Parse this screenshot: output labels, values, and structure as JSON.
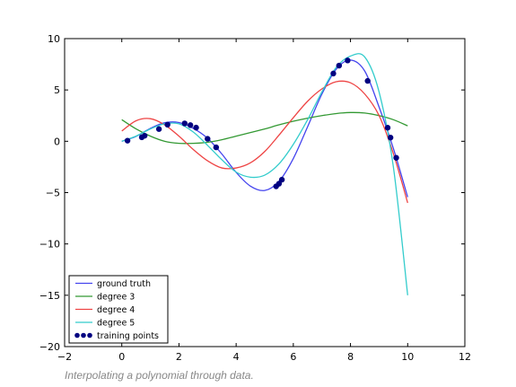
{
  "caption": "Interpolating a polynomial through data.",
  "chart_data": {
    "type": "line",
    "title": "",
    "xlabel": "",
    "ylabel": "",
    "xlim": [
      -2,
      12
    ],
    "ylim": [
      -20,
      10
    ],
    "xticks": [
      -2,
      0,
      2,
      4,
      6,
      8,
      10,
      12
    ],
    "yticks": [
      -20,
      -15,
      -10,
      -5,
      0,
      5,
      10
    ],
    "grid": false,
    "legend_position": "lower-left",
    "x": [
      0.0,
      0.5,
      1.0,
      1.5,
      2.0,
      2.5,
      3.0,
      3.5,
      4.0,
      4.5,
      5.0,
      5.5,
      6.0,
      6.5,
      7.0,
      7.5,
      8.0,
      8.5,
      9.0,
      9.5,
      10.0
    ],
    "series": [
      {
        "name": "ground truth",
        "color": "#4444ee",
        "values": [
          0.0,
          0.48,
          1.26,
          1.81,
          1.82,
          1.26,
          0.29,
          -1.24,
          -3.03,
          -4.37,
          -4.79,
          -3.9,
          -1.68,
          1.42,
          4.6,
          7.02,
          7.91,
          6.83,
          3.33,
          -0.7,
          -5.44
        ]
      },
      {
        "name": "degree 3",
        "color": "#339933",
        "values": [
          2.1,
          1.2,
          0.5,
          0.0,
          -0.2,
          -0.2,
          -0.1,
          0.15,
          0.5,
          0.85,
          1.2,
          1.6,
          1.95,
          2.25,
          2.5,
          2.7,
          2.8,
          2.75,
          2.5,
          2.1,
          1.5
        ]
      },
      {
        "name": "degree 4",
        "color": "#ee4444",
        "values": [
          1.0,
          2.0,
          2.2,
          1.6,
          0.5,
          -0.8,
          -1.9,
          -2.6,
          -2.6,
          -2.1,
          -1.0,
          0.6,
          2.3,
          3.9,
          5.1,
          5.8,
          5.7,
          4.6,
          2.5,
          -1.2,
          -6.0
        ]
      },
      {
        "name": "degree 5",
        "color": "#33cccc",
        "values": [
          0.0,
          0.5,
          1.2,
          1.7,
          1.7,
          0.9,
          -0.4,
          -1.8,
          -3.0,
          -3.5,
          -3.3,
          -2.2,
          -0.3,
          2.1,
          4.8,
          7.2,
          8.3,
          8.2,
          4.8,
          -2.5,
          -15.0
        ]
      }
    ],
    "scatter": {
      "name": "training points",
      "color": "#000080",
      "x": [
        0.2,
        0.7,
        0.8,
        1.3,
        1.6,
        2.2,
        2.4,
        2.6,
        3.0,
        3.3,
        5.4,
        5.5,
        5.6,
        7.4,
        7.6,
        7.9,
        8.6,
        9.3,
        9.4,
        9.6
      ],
      "y": [
        0.06,
        0.39,
        0.54,
        1.19,
        1.62,
        1.74,
        1.57,
        1.33,
        0.24,
        -0.59,
        -4.39,
        -4.13,
        -3.74,
        6.6,
        7.37,
        7.87,
        5.88,
        1.32,
        0.36,
        -1.61
      ]
    }
  }
}
